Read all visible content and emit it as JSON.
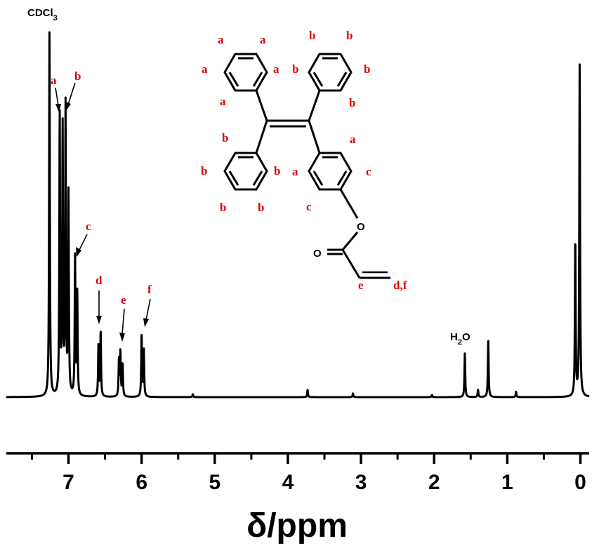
{
  "chart_data": {
    "type": "line",
    "title": "",
    "xlabel": "δ/ppm",
    "ylabel": "",
    "xlim": [
      7.85,
      -0.12
    ],
    "x_reversed": true,
    "grid": false,
    "xticks": [
      "7",
      "6",
      "5",
      "4",
      "3",
      "2",
      "1",
      "0"
    ],
    "xtick_values": [
      7,
      6,
      5,
      4,
      3,
      2,
      1,
      0
    ],
    "peaks": [
      {
        "ppm": 7.26,
        "intensity": 1.0,
        "label": "CDCl3"
      },
      {
        "ppm": 7.12,
        "intensity": 0.77
      },
      {
        "ppm": 7.08,
        "intensity": 0.73
      },
      {
        "ppm": 7.04,
        "intensity": 0.79
      },
      {
        "ppm": 7.0,
        "intensity": 0.55
      },
      {
        "ppm": 6.91,
        "intensity": 0.38
      },
      {
        "ppm": 6.88,
        "intensity": 0.28
      },
      {
        "ppm": 6.59,
        "intensity": 0.14
      },
      {
        "ppm": 6.56,
        "intensity": 0.18
      },
      {
        "ppm": 6.31,
        "intensity": 0.1
      },
      {
        "ppm": 6.29,
        "intensity": 0.12
      },
      {
        "ppm": 6.26,
        "intensity": 0.09
      },
      {
        "ppm": 6.0,
        "intensity": 0.17
      },
      {
        "ppm": 5.97,
        "intensity": 0.13
      },
      {
        "ppm": 5.3,
        "intensity": 0.008
      },
      {
        "ppm": 3.73,
        "intensity": 0.02
      },
      {
        "ppm": 3.11,
        "intensity": 0.01
      },
      {
        "ppm": 2.03,
        "intensity": 0.006
      },
      {
        "ppm": 1.58,
        "intensity": 0.12,
        "label": "H2O"
      },
      {
        "ppm": 1.4,
        "intensity": 0.02
      },
      {
        "ppm": 1.26,
        "intensity": 0.16
      },
      {
        "ppm": 0.88,
        "intensity": 0.015
      },
      {
        "ppm": 0.07,
        "intensity": 0.43
      },
      {
        "ppm": 0.01,
        "intensity": 0.91
      }
    ],
    "annotations": [
      {
        "text": "a",
        "ppm": 7.12
      },
      {
        "text": "b",
        "ppm": 7.04
      },
      {
        "text": "c",
        "ppm": 6.9
      },
      {
        "text": "d",
        "ppm": 6.56
      },
      {
        "text": "e",
        "ppm": 6.29
      },
      {
        "text": "f",
        "ppm": 5.99
      }
    ],
    "solvent_label": {
      "base": "CDCl",
      "sub": "3"
    },
    "water_label": {
      "base": "H",
      "sub": "2",
      "rest": "O"
    },
    "line_color": "#000000",
    "label_color": "#e00000"
  },
  "structure": {
    "atom_labels": [
      "a",
      "a",
      "a",
      "a",
      "a",
      "b",
      "b",
      "b",
      "b",
      "b",
      "b",
      "b",
      "b",
      "b",
      "b",
      "a",
      "c",
      "a",
      "c",
      "e",
      "d,f"
    ],
    "oxygen_labels": [
      "O",
      "O"
    ]
  }
}
